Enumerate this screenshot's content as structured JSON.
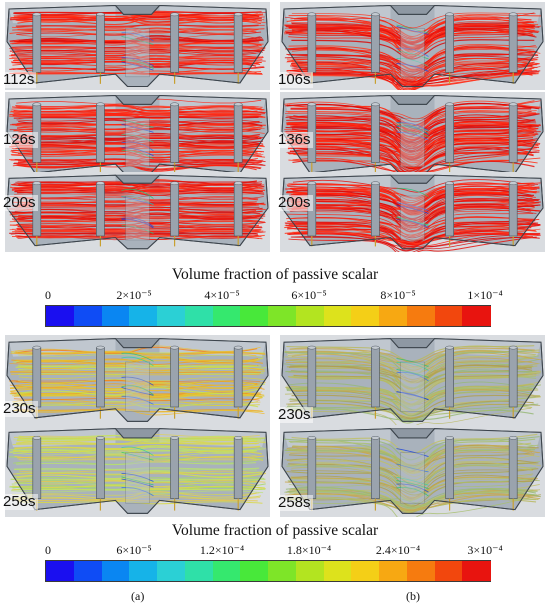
{
  "colormap": [
    "#1a0ff0",
    "#0f4cf5",
    "#0a86f2",
    "#16b3e8",
    "#2bd0d5",
    "#2fe0a8",
    "#35e86e",
    "#48e83a",
    "#7ee528",
    "#b3e420",
    "#dde21c",
    "#f4cf17",
    "#f7a812",
    "#f67b0f",
    "#f2470d",
    "#e8140f"
  ],
  "panels_top": [
    {
      "time": "112s",
      "flow": "red",
      "col": "a",
      "dip": false
    },
    {
      "time": "106s",
      "flow": "red",
      "col": "b",
      "dip": true
    },
    {
      "time": "126s",
      "flow": "red",
      "col": "a",
      "dip": false
    },
    {
      "time": "136s",
      "flow": "red",
      "col": "b",
      "dip": true
    },
    {
      "time": "200s",
      "flow": "red",
      "col": "a",
      "dip": false
    },
    {
      "time": "200s",
      "flow": "red",
      "col": "b",
      "dip": true
    }
  ],
  "panels_bottom": [
    {
      "time": "230s",
      "flow": "orange",
      "col": "a",
      "dip": false
    },
    {
      "time": "230s",
      "flow": "olive",
      "col": "b",
      "dip": true
    },
    {
      "time": "258s",
      "flow": "yellow",
      "col": "a",
      "dip": false
    },
    {
      "time": "258s",
      "flow": "olive",
      "col": "b",
      "dip": true
    }
  ],
  "colorbar1": {
    "title": "Volume fraction of passive scalar",
    "ticks": [
      "0",
      "2×10⁻⁵",
      "4×10⁻⁵",
      "6×10⁻⁵",
      "8×10⁻⁵",
      "1×10⁻⁴"
    ]
  },
  "colorbar2": {
    "title": "Volume fraction of passive scalar",
    "ticks": [
      "0",
      "6×10⁻⁵",
      "1.2×10⁻⁴",
      "1.8×10⁻⁴",
      "2.4×10⁻⁴",
      "3×10⁻⁴"
    ]
  },
  "sublabels": {
    "a": "(a)",
    "b": "(b)"
  }
}
